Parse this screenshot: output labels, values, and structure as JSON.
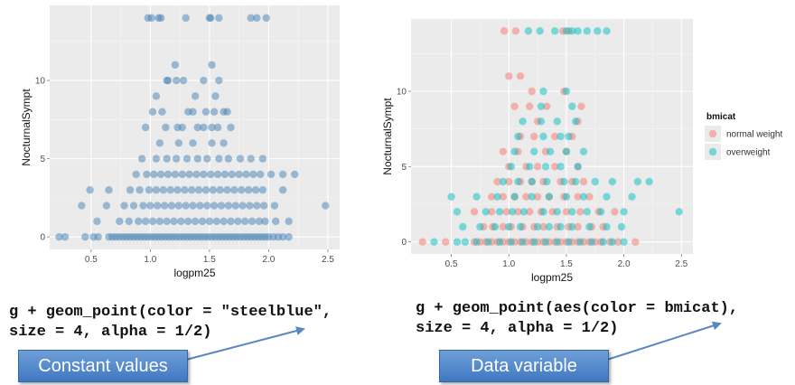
{
  "left_panel": {
    "code_line1": "g + geom_point(color = \"steelblue\",",
    "code_line2": "size = 4, alpha = 1/2)",
    "callout": "Constant values"
  },
  "right_panel": {
    "code_line1": "g + geom_point(aes(color = bmicat),",
    "code_line2": "size = 4, alpha = 1/2)",
    "callout": "Data variable"
  },
  "colors": {
    "panel_bg": "#ebebeb",
    "grid": "#ffffff",
    "steelblue": "#4682b4",
    "normal_weight": "#f8766d",
    "overweight": "#00bfc4",
    "callout_fill": "#4f86c9",
    "arrow": "#5b87bf"
  },
  "chart_data": [
    {
      "type": "scatter",
      "title": "",
      "xlabel": "logpm25",
      "ylabel": "NocturnalSympt",
      "xlim": [
        0.15,
        2.6
      ],
      "ylim": [
        -0.8,
        14.8
      ],
      "xticks": [
        "0.5",
        "1.0",
        "1.5",
        "2.0",
        "2.5"
      ],
      "yticks": [
        "0",
        "5",
        "10"
      ],
      "grid": true,
      "color": "#4682b4",
      "alpha": 0.5,
      "series": [
        {
          "x": [
            0.23,
            0.28,
            0.45,
            0.52,
            0.56,
            0.65,
            0.68,
            0.71,
            0.74,
            0.77,
            0.8,
            0.83,
            0.86,
            0.89,
            0.92,
            0.95,
            0.98,
            1.01,
            1.04,
            1.07,
            1.1,
            1.13,
            1.16,
            1.19,
            1.22,
            1.25,
            1.28,
            1.31,
            1.34,
            1.37,
            1.4,
            1.43,
            1.46,
            1.49,
            1.52,
            1.55,
            1.58,
            1.61,
            1.64,
            1.67,
            1.7,
            1.73,
            1.76,
            1.79,
            1.82,
            1.85,
            1.88,
            1.91,
            1.94,
            1.97,
            2.0,
            2.04,
            2.08,
            2.12,
            2.17,
            0.55,
            0.74,
            0.82,
            0.9,
            0.96,
            1.02,
            1.08,
            1.14,
            1.2,
            1.26,
            1.32,
            1.38,
            1.44,
            1.5,
            1.56,
            1.62,
            1.68,
            1.74,
            1.8,
            1.86,
            1.92,
            1.97,
            2.06,
            2.17,
            0.42,
            0.63,
            0.78,
            0.86,
            0.94,
            1.0,
            1.06,
            1.12,
            1.18,
            1.24,
            1.3,
            1.36,
            1.42,
            1.48,
            1.54,
            1.6,
            1.66,
            1.72,
            1.78,
            1.84,
            1.9,
            1.96,
            2.05,
            2.48,
            0.49,
            0.65,
            0.83,
            0.91,
            0.99,
            1.05,
            1.11,
            1.17,
            1.23,
            1.29,
            1.35,
            1.41,
            1.47,
            1.53,
            1.59,
            1.65,
            1.71,
            1.77,
            1.83,
            1.89,
            1.95,
            2.12,
            0.88,
            0.97,
            1.03,
            1.09,
            1.15,
            1.21,
            1.27,
            1.33,
            1.39,
            1.45,
            1.51,
            1.57,
            1.63,
            1.69,
            1.75,
            1.81,
            1.87,
            1.93,
            2.02,
            2.12,
            2.22,
            0.93,
            1.05,
            1.14,
            1.22,
            1.31,
            1.4,
            1.48,
            1.58,
            1.66,
            1.76,
            1.85,
            1.95,
            1.08,
            1.24,
            1.36,
            1.52,
            1.62,
            0.96,
            1.13,
            1.27,
            1.45,
            1.57,
            1.1,
            1.32,
            1.47,
            1.62,
            1.05,
            1.38,
            1.55,
            1.15,
            1.28,
            1.45,
            1.58,
            1.02,
            1.36,
            1.54,
            1.65,
            1.23,
            1.4,
            1.52,
            1.68,
            1.21,
            1.52,
            1.14,
            1.22,
            0.98,
            1.07,
            1.3,
            1.5,
            1.01,
            1.09,
            1.51,
            1.58,
            1.85,
            1.9,
            1.98
          ],
          "y": [
            0,
            0,
            0,
            0,
            0,
            0,
            0,
            0,
            0,
            0,
            0,
            0,
            0,
            0,
            0,
            0,
            0,
            0,
            0,
            0,
            0,
            0,
            0,
            0,
            0,
            0,
            0,
            0,
            0,
            0,
            0,
            0,
            0,
            0,
            0,
            0,
            0,
            0,
            0,
            0,
            0,
            0,
            0,
            0,
            0,
            0,
            0,
            0,
            0,
            0,
            0,
            0,
            0,
            0,
            0,
            1,
            1,
            1,
            1,
            1,
            1,
            1,
            1,
            1,
            1,
            1,
            1,
            1,
            1,
            1,
            1,
            1,
            1,
            1,
            1,
            1,
            1,
            1,
            1,
            2,
            2,
            2,
            2,
            2,
            2,
            2,
            2,
            2,
            2,
            2,
            2,
            2,
            2,
            2,
            2,
            2,
            2,
            2,
            2,
            2,
            2,
            2,
            2,
            3,
            3,
            3,
            3,
            3,
            3,
            3,
            3,
            3,
            3,
            3,
            3,
            3,
            3,
            3,
            3,
            3,
            3,
            3,
            3,
            3,
            3,
            4,
            4,
            4,
            4,
            4,
            4,
            4,
            4,
            4,
            4,
            4,
            4,
            4,
            4,
            4,
            4,
            4,
            4,
            4,
            4,
            4,
            5,
            5,
            5,
            5,
            5,
            5,
            5,
            5,
            5,
            5,
            5,
            5,
            6,
            6,
            6,
            6,
            6,
            7,
            7,
            7,
            7,
            7,
            8,
            8,
            8,
            8,
            9,
            9,
            9,
            10,
            10,
            10,
            10,
            8,
            8,
            8,
            8,
            7,
            7,
            7,
            7,
            11,
            11,
            10,
            10,
            14,
            14,
            14,
            14,
            14,
            14,
            14,
            14,
            14,
            14,
            14
          ]
        }
      ]
    },
    {
      "type": "scatter",
      "title": "",
      "xlabel": "logpm25",
      "ylabel": "NocturnalSympt",
      "xlim": [
        0.15,
        2.6
      ],
      "ylim": [
        -0.8,
        14.8
      ],
      "xticks": [
        "0.5",
        "1.0",
        "1.5",
        "2.0",
        "2.5"
      ],
      "yticks": [
        "0",
        "5",
        "10"
      ],
      "grid": true,
      "legend": {
        "title": "bmicat",
        "position": "right"
      },
      "alpha": 0.5,
      "series": [
        {
          "name": "normal weight",
          "color": "#f8766d",
          "x": [
            0.25,
            0.45,
            0.7,
            0.75,
            0.8,
            0.85,
            0.9,
            0.95,
            1.0,
            1.05,
            1.1,
            1.15,
            1.2,
            1.25,
            1.3,
            1.35,
            1.4,
            1.45,
            1.5,
            1.55,
            1.6,
            1.65,
            1.7,
            1.75,
            1.8,
            1.88,
            1.95,
            2.1,
            0.78,
            0.86,
            0.95,
            1.02,
            1.12,
            1.22,
            1.3,
            1.42,
            1.52,
            1.6,
            1.72,
            1.82,
            0.7,
            0.85,
            0.98,
            1.08,
            1.18,
            1.28,
            1.38,
            1.5,
            1.62,
            1.78,
            1.92,
            0.85,
            0.95,
            1.05,
            1.15,
            1.25,
            1.35,
            1.48,
            1.6,
            1.7,
            0.9,
            1.0,
            1.1,
            1.2,
            1.3,
            1.45,
            1.55,
            1.65,
            1.0,
            1.15,
            1.25,
            1.4,
            1.6,
            0.95,
            1.08,
            1.32,
            1.5,
            1.1,
            1.22,
            1.4,
            1.55,
            1.25,
            1.6,
            1.05,
            1.18,
            1.33,
            1.63,
            1.2,
            1.48,
            1.0,
            1.1,
            0.96,
            1.06,
            1.47,
            1.52
          ],
          "y": [
            0,
            0,
            0,
            0,
            0,
            0,
            0,
            0,
            0,
            0,
            0,
            0,
            0,
            0,
            0,
            0,
            0,
            0,
            0,
            0,
            0,
            0,
            0,
            0,
            0,
            0,
            0,
            0,
            1,
            1,
            1,
            1,
            1,
            1,
            1,
            1,
            1,
            1,
            1,
            1,
            2,
            2,
            2,
            2,
            2,
            2,
            2,
            2,
            2,
            2,
            2,
            3,
            3,
            3,
            3,
            3,
            3,
            3,
            3,
            3,
            4,
            4,
            4,
            4,
            4,
            4,
            4,
            4,
            5,
            5,
            5,
            5,
            5,
            6,
            6,
            6,
            6,
            7,
            7,
            7,
            7,
            8,
            8,
            9,
            9,
            9,
            9,
            10,
            10,
            11,
            11,
            14,
            14,
            14,
            14
          ]
        },
        {
          "name": "overweight",
          "color": "#00bfc4",
          "x": [
            0.35,
            0.55,
            0.62,
            0.72,
            0.82,
            0.92,
            1.02,
            1.12,
            1.22,
            1.32,
            1.42,
            1.52,
            1.62,
            1.72,
            1.82,
            1.9,
            2.0,
            0.6,
            0.75,
            0.88,
            1.0,
            1.1,
            1.25,
            1.35,
            1.45,
            1.55,
            1.7,
            1.85,
            1.98,
            0.55,
            0.8,
            0.92,
            1.03,
            1.13,
            1.3,
            1.42,
            1.55,
            1.68,
            1.8,
            2.0,
            2.48,
            0.5,
            0.72,
            0.9,
            1.05,
            1.2,
            1.35,
            1.5,
            1.65,
            1.85,
            2.07,
            2.22,
            0.95,
            1.08,
            1.2,
            1.33,
            1.48,
            1.58,
            1.75,
            1.9,
            2.12,
            1.02,
            1.18,
            1.32,
            1.45,
            1.6,
            1.05,
            1.22,
            1.36,
            1.5,
            1.65,
            1.08,
            1.3,
            1.45,
            1.52,
            1.12,
            1.28,
            1.42,
            1.58,
            1.28,
            1.55,
            1.3,
            1.5,
            1.17,
            1.4,
            1.27,
            1.5,
            1.68,
            1.77,
            1.55,
            1.6,
            1.85
          ],
          "y": [
            0,
            0,
            0,
            0,
            0,
            0,
            0,
            0,
            0,
            0,
            0,
            0,
            0,
            0,
            0,
            0,
            0,
            1,
            1,
            1,
            1,
            1,
            1,
            1,
            1,
            1,
            1,
            1,
            1,
            2,
            2,
            2,
            2,
            2,
            2,
            2,
            2,
            2,
            2,
            2,
            2,
            3,
            3,
            3,
            3,
            3,
            3,
            3,
            3,
            3,
            3,
            4,
            4,
            4,
            4,
            4,
            4,
            4,
            4,
            4,
            4,
            5,
            5,
            5,
            5,
            5,
            6,
            6,
            6,
            6,
            6,
            7,
            7,
            7,
            7,
            8,
            8,
            8,
            8,
            9,
            9,
            10,
            10,
            14,
            14,
            14,
            14,
            14,
            14,
            14,
            14,
            14
          ]
        }
      ]
    }
  ]
}
